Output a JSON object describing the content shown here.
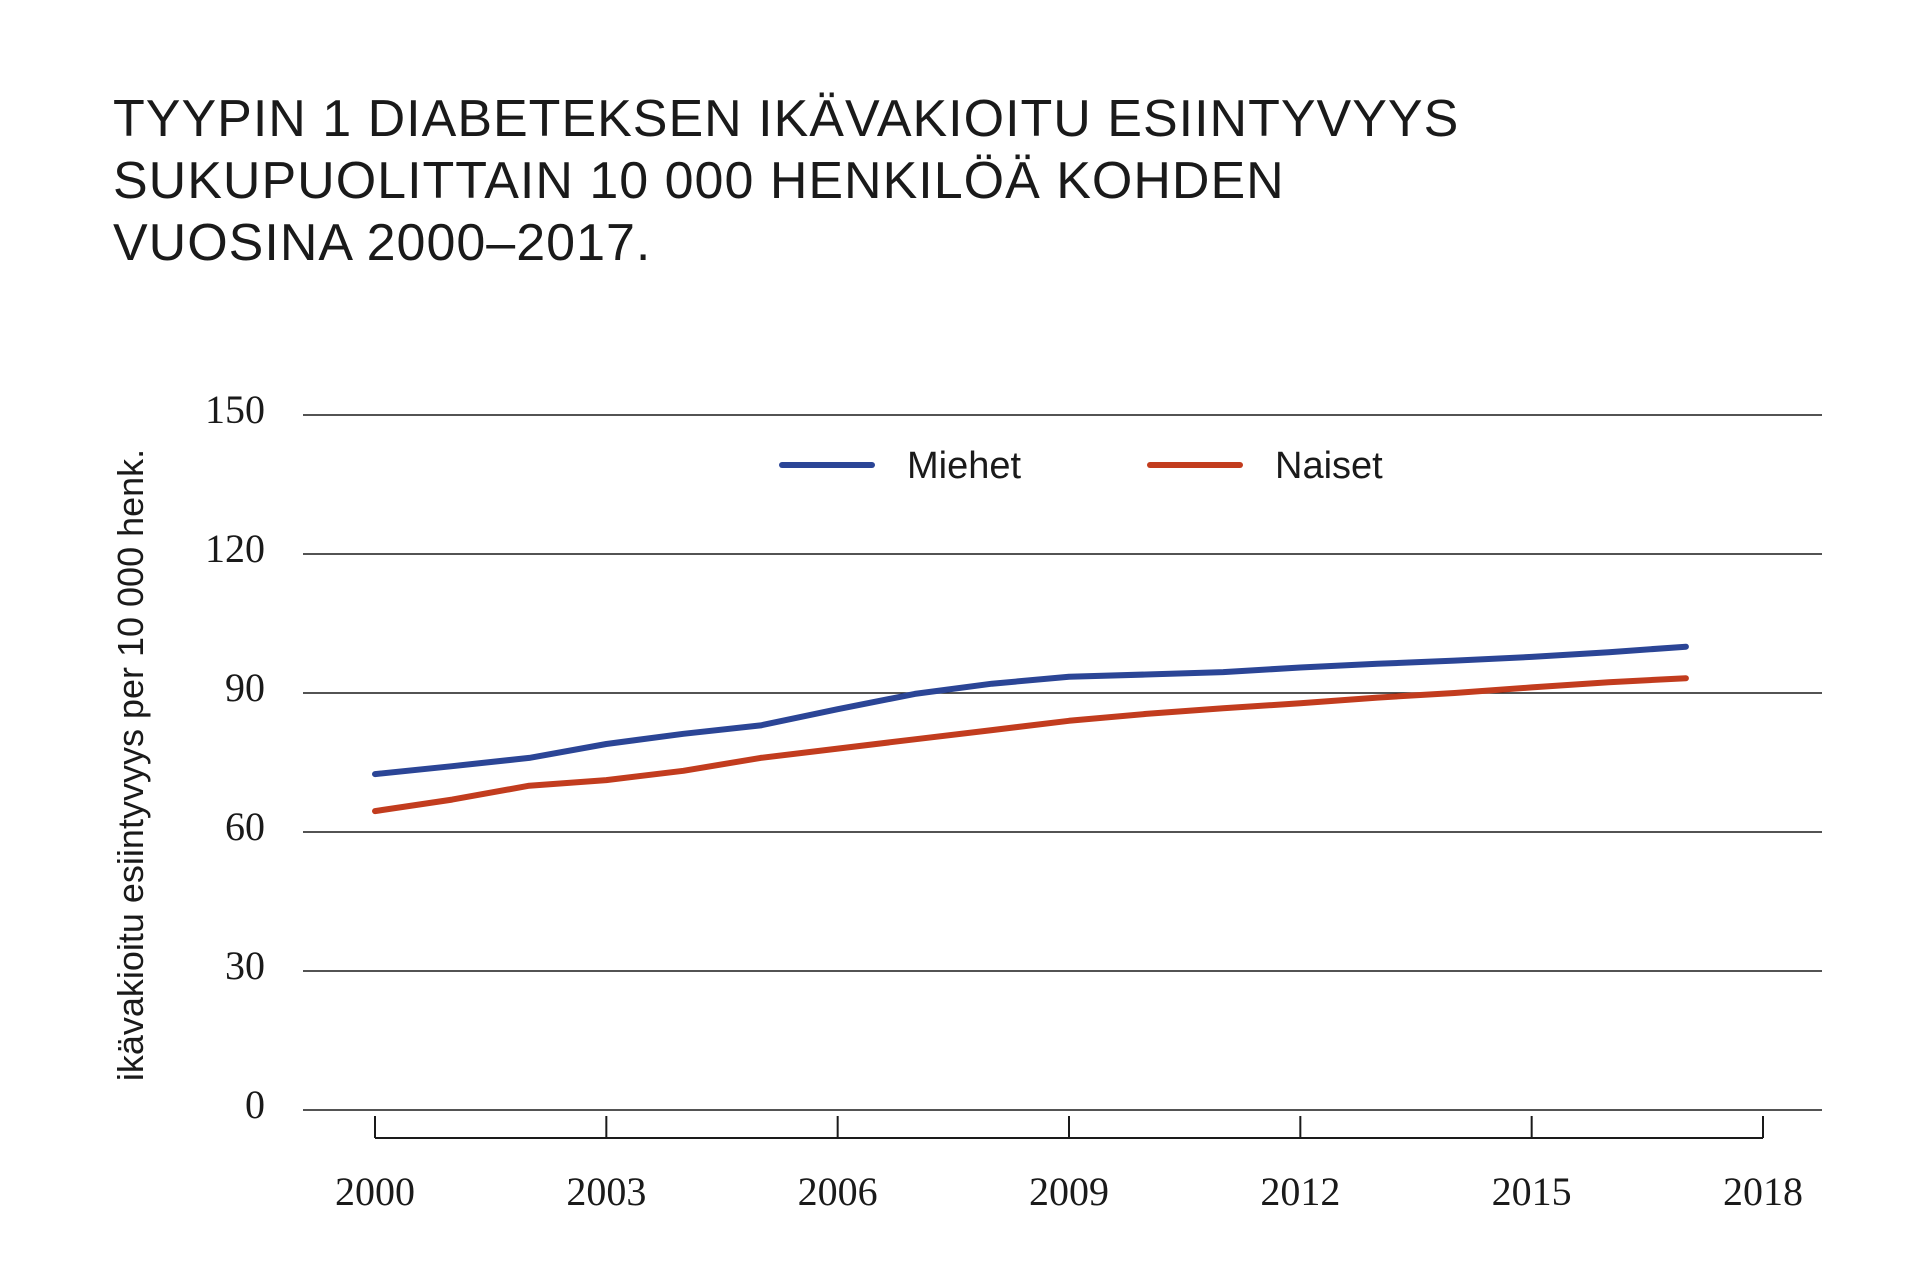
{
  "chart_data": {
    "type": "line",
    "title_lines": [
      "TYYPIN 1 DIABETEKSEN IKÄVAKIOITU ESIINTYVYYS",
      "SUKUPUOLITTAIN 10 000 HENKILÖÄ KOHDEN",
      "VUOSINA 2000–2017."
    ],
    "ylabel": "ikävakioitu esiintyvyys per 10 000 henk.",
    "xlabel": "",
    "xlim": [
      2000,
      2018
    ],
    "ylim": [
      0,
      150
    ],
    "x_ticks": [
      "2000",
      "2003",
      "2006",
      "2009",
      "2012",
      "2015",
      "2018"
    ],
    "y_ticks": [
      "0",
      "30",
      "60",
      "90",
      "120",
      "150"
    ],
    "grid": true,
    "legend_position": "top-center",
    "x": [
      2000,
      2001,
      2002,
      2003,
      2004,
      2005,
      2006,
      2007,
      2008,
      2009,
      2010,
      2011,
      2012,
      2013,
      2014,
      2015,
      2016,
      2017
    ],
    "series": [
      {
        "name": "Miehet",
        "color": "#2b4596",
        "values": [
          72.5,
          74.2,
          76.0,
          79.0,
          81.2,
          83.0,
          86.5,
          89.8,
          92.0,
          93.5,
          94.0,
          94.5,
          95.5,
          96.3,
          97.0,
          97.8,
          98.8,
          100.0
        ]
      },
      {
        "name": "Naiset",
        "color": "#c23c1e",
        "values": [
          64.5,
          67.0,
          70.0,
          71.2,
          73.2,
          76.0,
          78.0,
          80.0,
          82.0,
          84.0,
          85.5,
          86.7,
          87.8,
          89.0,
          90.0,
          91.2,
          92.3,
          93.2
        ]
      }
    ]
  }
}
